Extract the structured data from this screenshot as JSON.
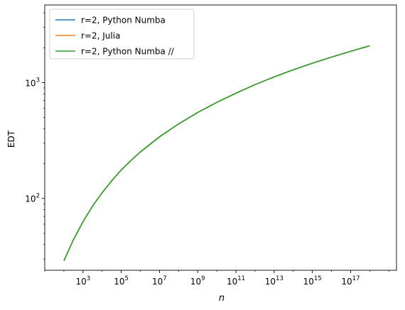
{
  "chart_data": {
    "type": "line",
    "title": "",
    "xlabel": "n",
    "ylabel": "EDT",
    "xscale": "log",
    "yscale": "log",
    "xlim_log10": [
      1.0,
      19.4
    ],
    "ylim_log10": [
      1.38,
      3.67
    ],
    "x_ticks": [
      {
        "exp": 3,
        "base": "10",
        "sup": "3"
      },
      {
        "exp": 5,
        "base": "10",
        "sup": "5"
      },
      {
        "exp": 7,
        "base": "10",
        "sup": "7"
      },
      {
        "exp": 9,
        "base": "10",
        "sup": "9"
      },
      {
        "exp": 11,
        "base": "10",
        "sup": "11"
      },
      {
        "exp": 13,
        "base": "10",
        "sup": "13"
      },
      {
        "exp": 15,
        "base": "10",
        "sup": "15"
      },
      {
        "exp": 17,
        "base": "10",
        "sup": "17"
      }
    ],
    "y_ticks": [
      {
        "exp": 2,
        "base": "10",
        "sup": "2"
      },
      {
        "exp": 3,
        "base": "10",
        "sup": "3"
      }
    ],
    "grid": false,
    "legend_position": "top-left",
    "series": [
      {
        "name": "r=2, Python Numba",
        "color": "#1f77b4",
        "x_log10": [
          2.0,
          2.5,
          3.0,
          3.5,
          4.0,
          4.5,
          5.0,
          5.5,
          6.0,
          7.0,
          8.0,
          9.0,
          10.0,
          11.0,
          12.0,
          13.0,
          14.0,
          15.0,
          16.0,
          17.0,
          18.0
        ],
        "y": [
          29,
          44,
          63,
          86,
          112,
          142,
          176,
          212,
          252,
          340,
          440,
          552,
          675,
          810,
          960,
          1120,
          1290,
          1470,
          1660,
          1860,
          2080
        ]
      },
      {
        "name": "r=2, Julia",
        "color": "#ff7f0e",
        "x_log10": [
          2.0,
          2.5,
          3.0,
          3.5,
          4.0,
          4.5,
          5.0,
          5.5,
          6.0,
          7.0,
          8.0,
          9.0,
          10.0,
          11.0,
          12.0,
          13.0,
          14.0,
          15.0,
          16.0,
          17.0,
          18.0
        ],
        "y": [
          29,
          44,
          63,
          86,
          112,
          142,
          176,
          212,
          252,
          340,
          440,
          552,
          675,
          810,
          960,
          1120,
          1290,
          1470,
          1660,
          1860,
          2080
        ]
      },
      {
        "name": "r=2, Python Numba //",
        "color": "#2ca02c",
        "x_log10": [
          2.0,
          2.5,
          3.0,
          3.5,
          4.0,
          4.5,
          5.0,
          5.5,
          6.0,
          7.0,
          8.0,
          9.0,
          10.0,
          11.0,
          12.0,
          13.0,
          14.0,
          15.0,
          16.0,
          17.0,
          18.0
        ],
        "y": [
          29,
          44,
          63,
          86,
          112,
          142,
          176,
          212,
          252,
          340,
          440,
          552,
          675,
          810,
          960,
          1120,
          1290,
          1470,
          1660,
          1860,
          2080
        ]
      }
    ]
  }
}
